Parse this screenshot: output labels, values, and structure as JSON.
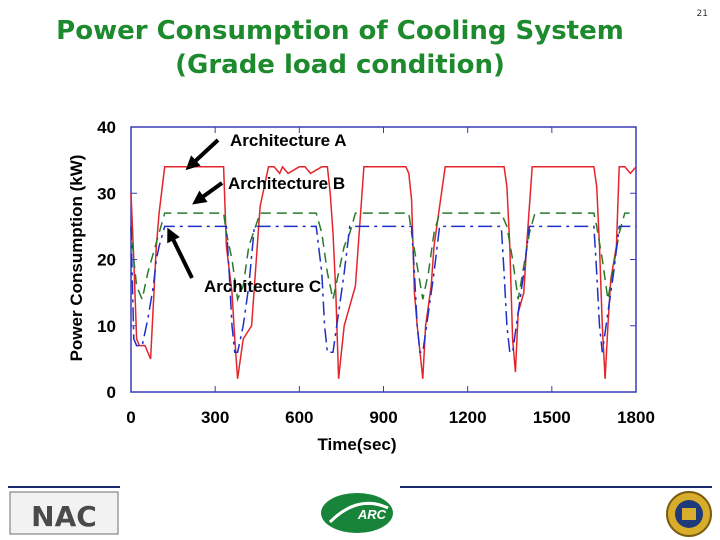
{
  "slide": {
    "title_line1": "Power Consumption of Cooling System",
    "title_line2": "(Grade load condition)",
    "number": "21"
  },
  "logos": {
    "left": "NAC",
    "center": "ARC"
  },
  "colors": {
    "title": "#1e8a2e",
    "architecture_a": "#e3262b",
    "architecture_b": "#2a7a2a",
    "architecture_c": "#1f2fc8",
    "axis_frame": "#3a3ab8",
    "footer_line": "#1a2a6c"
  },
  "chart_data": {
    "type": "line",
    "title": "",
    "xlabel": "Time(sec)",
    "ylabel": "Power Consumption (kW)",
    "xlim": [
      0,
      1800
    ],
    "ylim": [
      0,
      40
    ],
    "xticks": [
      "0",
      "300",
      "600",
      "900",
      "1200",
      "1500",
      "1800"
    ],
    "yticks": [
      "0",
      "10",
      "20",
      "30",
      "40"
    ],
    "annotations": [
      "Architecture A",
      "Architecture B",
      "Architecture C"
    ],
    "series": [
      {
        "name": "Architecture A",
        "style": "solid",
        "x": [
          0,
          10,
          20,
          30,
          50,
          70,
          90,
          100,
          120,
          330,
          335,
          340,
          360,
          370,
          380,
          400,
          430,
          460,
          490,
          500,
          510,
          530,
          540,
          560,
          600,
          620,
          640,
          680,
          690,
          700,
          710,
          720,
          730,
          740,
          760,
          800,
          830,
          980,
          990,
          1000,
          1010,
          1020,
          1040,
          1050,
          1070,
          1080,
          1120,
          1140,
          1150,
          1330,
          1340,
          1350,
          1360,
          1370,
          1380,
          1400,
          1410,
          1430,
          1460,
          1480,
          1500,
          1650,
          1660,
          1670,
          1680,
          1690,
          1700,
          1710,
          1730,
          1740,
          1760,
          1780,
          1800
        ],
        "y": [
          30,
          20,
          8,
          7,
          7,
          5,
          22,
          27,
          34,
          34,
          28,
          22,
          15,
          8,
          2,
          8,
          10,
          28,
          34,
          34,
          34,
          33,
          34,
          33,
          34,
          34,
          33,
          34,
          34,
          34,
          30,
          24,
          15,
          2,
          10,
          16,
          34,
          34,
          33,
          29,
          15,
          10,
          2,
          10,
          16,
          22,
          34,
          34,
          34,
          34,
          31,
          22,
          8,
          3,
          12,
          15,
          22,
          34,
          34,
          34,
          34,
          34,
          31,
          22,
          10,
          2,
          10,
          17,
          22,
          34,
          34,
          33,
          34
        ]
      },
      {
        "name": "Architecture B",
        "style": "dashed",
        "x": [
          0,
          10,
          20,
          40,
          60,
          80,
          100,
          120,
          330,
          340,
          360,
          380,
          400,
          420,
          460,
          660,
          680,
          700,
          720,
          740,
          760,
          780,
          800,
          990,
          1000,
          1020,
          1040,
          1060,
          1080,
          1100,
          1320,
          1340,
          1360,
          1380,
          1400,
          1420,
          1440,
          1650,
          1660,
          1680,
          1700,
          1720,
          1740,
          1760,
          1800
        ],
        "y": [
          25,
          20,
          16,
          14,
          18,
          21,
          24,
          27,
          27,
          24,
          20,
          14,
          16,
          22,
          27,
          27,
          24,
          18,
          14,
          18,
          22,
          24,
          27,
          27,
          24,
          19,
          14,
          18,
          24,
          27,
          27,
          25,
          20,
          14,
          19,
          24,
          27,
          27,
          25,
          20,
          14,
          19,
          24,
          27,
          27
        ]
      },
      {
        "name": "Architecture C",
        "style": "dashdot",
        "x": [
          0,
          10,
          20,
          40,
          60,
          80,
          90,
          100,
          120,
          340,
          350,
          360,
          370,
          380,
          400,
          420,
          440,
          660,
          680,
          690,
          700,
          720,
          740,
          760,
          780,
          1000,
          1010,
          1020,
          1030,
          1040,
          1060,
          1080,
          1100,
          1320,
          1330,
          1340,
          1350,
          1360,
          1380,
          1400,
          1420,
          1650,
          1660,
          1670,
          1680,
          1700,
          1720,
          1740,
          1800
        ],
        "y": [
          25,
          8,
          7,
          7,
          11,
          16,
          20,
          22,
          25,
          25,
          18,
          10,
          6,
          6,
          10,
          16,
          25,
          25,
          18,
          10,
          6,
          6,
          12,
          18,
          25,
          25,
          18,
          10,
          6,
          6,
          12,
          18,
          25,
          25,
          18,
          10,
          6,
          6,
          12,
          18,
          25,
          25,
          18,
          10,
          6,
          12,
          18,
          25,
          25
        ]
      }
    ],
    "legend": "none"
  }
}
